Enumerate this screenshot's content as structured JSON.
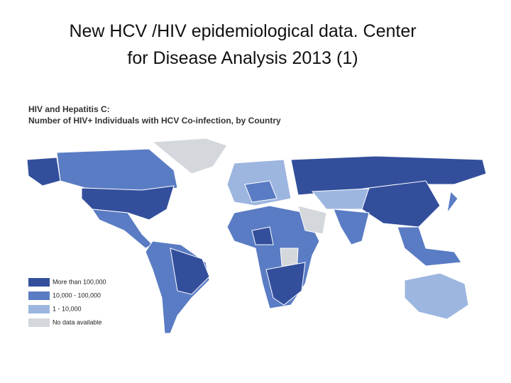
{
  "header": {
    "title_lines": [
      "New HCV /HIV epidemiological data. Center",
      "for Disease Analysis 2013 (1)"
    ]
  },
  "map": {
    "title_lines": [
      "HIV and Hepatitis C:",
      "Number of HIV+ Individuals with HCV Co-infection, by Country"
    ],
    "legend": [
      {
        "label": "More than 100,000",
        "color": "#334f9c"
      },
      {
        "label": "10,000 - 100,000",
        "color": "#5a7cc4"
      },
      {
        "label": "1 - 10,000",
        "color": "#9db6e0"
      },
      {
        "label": "No data available",
        "color": "#d4d7dc"
      }
    ]
  }
}
